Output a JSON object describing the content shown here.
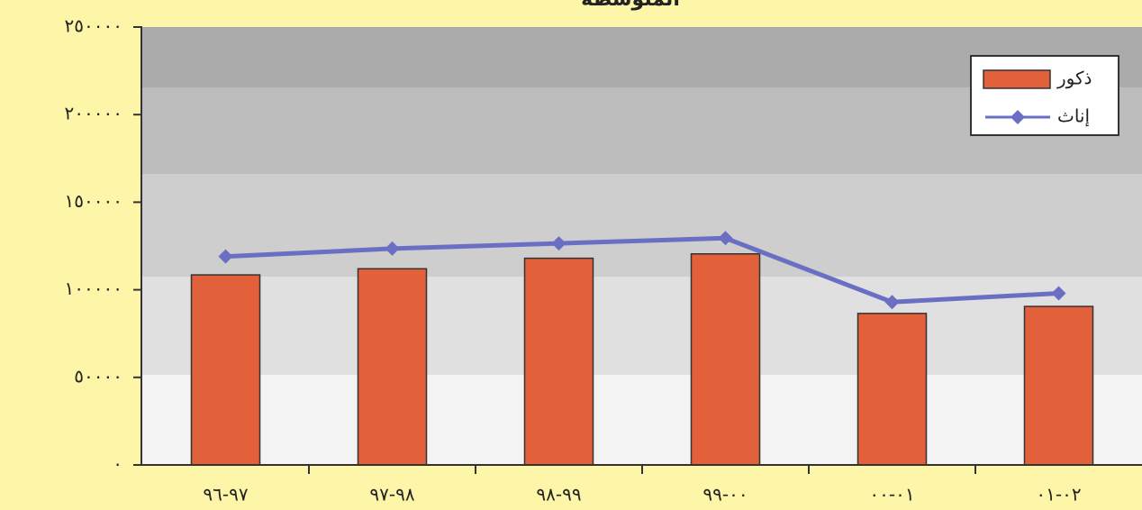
{
  "chart_data": {
    "type": "bar_line",
    "title": "المتوسطة",
    "categories": [
      "٩٧-٩٦",
      "٩٨-٩٧",
      "٩٩-٩٨",
      "٠٠-٩٩",
      "٠١-٠٠",
      "٠٢-٠١"
    ],
    "series": [
      {
        "name": "ذكور",
        "type": "bar",
        "color": "#e2603a",
        "values": [
          108500,
          112000,
          118000,
          120500,
          86500,
          90500
        ]
      },
      {
        "name": "إناث",
        "type": "line",
        "color": "#6a6fc4",
        "values": [
          119000,
          123500,
          126500,
          129500,
          93000,
          98000
        ]
      }
    ],
    "ylim": [
      0,
      250000
    ],
    "yticks": [
      {
        "value": 0,
        "label": "٠"
      },
      {
        "value": 50000,
        "label": "٥٠٠٠٠"
      },
      {
        "value": 100000,
        "label": "١٠٠٠٠٠"
      },
      {
        "value": 150000,
        "label": "١٥٠٠٠٠"
      },
      {
        "value": 200000,
        "label": "٢٠٠٠٠٠"
      },
      {
        "value": 250000,
        "label": "٢٥٠٠٠٠"
      }
    ],
    "legend": "top-right"
  }
}
